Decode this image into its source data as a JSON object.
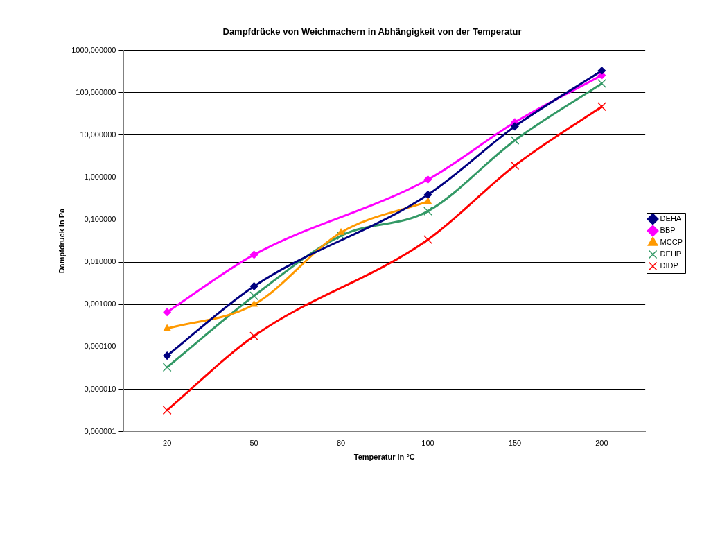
{
  "chart_data": {
    "type": "line",
    "title": "Dampfdrücke von Weichmachern in Abhängigkeit von der Temperatur",
    "xlabel": "Temperatur in °C",
    "ylabel": "Dampfdruck in Pa",
    "categories": [
      "20",
      "50",
      "80",
      "100",
      "150",
      "200"
    ],
    "series": [
      {
        "name": "DEHA",
        "color": "#000080",
        "marker": "diamond",
        "values": [
          6.2e-05,
          0.0027,
          null,
          0.39,
          16,
          330
        ]
      },
      {
        "name": "BBP",
        "color": "#ff00ff",
        "marker": "diamond",
        "values": [
          0.00066,
          0.015,
          null,
          0.89,
          20,
          257
        ]
      },
      {
        "name": "MCCP",
        "color": "#ff9900",
        "marker": "triangle",
        "values": [
          0.00027,
          0.001,
          0.05,
          0.27,
          null,
          null
        ]
      },
      {
        "name": "DEHP",
        "color": "#339966",
        "marker": "cross",
        "values": [
          3.3e-05,
          0.0016,
          0.042,
          0.16,
          7.5,
          165
        ]
      },
      {
        "name": "DIDP",
        "color": "#ff0000",
        "marker": "cross",
        "values": [
          3.2e-06,
          0.00018,
          null,
          0.034,
          1.9,
          47
        ]
      }
    ],
    "log": "y",
    "ylim": [
      1e-06,
      1000
    ],
    "yticks": [
      {
        "value": 1e-06,
        "label": "0,000001"
      },
      {
        "value": 1e-05,
        "label": "0,000010"
      },
      {
        "value": 0.0001,
        "label": "0,000100"
      },
      {
        "value": 0.001,
        "label": "0,001000"
      },
      {
        "value": 0.01,
        "label": "0,010000"
      },
      {
        "value": 0.1,
        "label": "0,100000"
      },
      {
        "value": 1,
        "label": "1,000000"
      },
      {
        "value": 10,
        "label": "10,000000"
      },
      {
        "value": 100,
        "label": "100,000000"
      },
      {
        "value": 1000,
        "label": "1000,000000"
      }
    ],
    "grid": "y",
    "legend": "right",
    "line_style": "solid"
  }
}
